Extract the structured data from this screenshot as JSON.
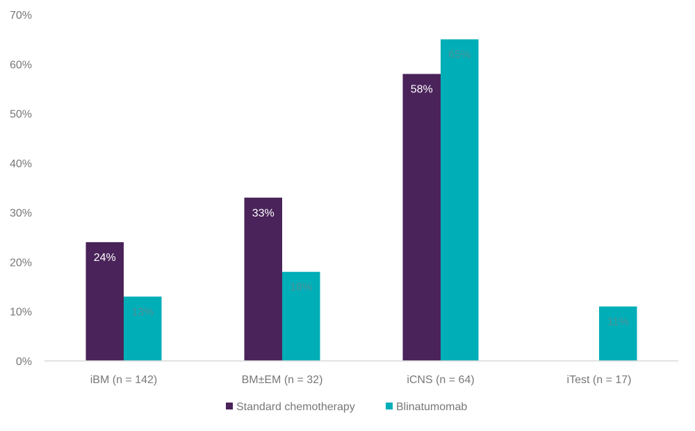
{
  "chart_data": {
    "type": "bar",
    "title": "",
    "xlabel": "",
    "ylabel": "",
    "ylim": [
      0,
      70
    ],
    "yticks": [
      0,
      10,
      20,
      30,
      40,
      50,
      60,
      70
    ],
    "ytick_labels": [
      "0%",
      "10%",
      "20%",
      "30%",
      "40%",
      "50%",
      "60%",
      "70%"
    ],
    "grid": false,
    "legend_position": "bottom-center",
    "categories": [
      "iBM (n = 142)",
      "BM±EM (n = 32)",
      "iCNS (n = 64)",
      "iTest (n = 17)"
    ],
    "series": [
      {
        "name": "Standard chemotherapy",
        "color": "#4a235a",
        "label_color": "#ffffff",
        "values": [
          24,
          33,
          58,
          null
        ],
        "labels": [
          "24%",
          "33%",
          "58%",
          null
        ]
      },
      {
        "name": "Blinatumomab",
        "color": "#00aeb8",
        "label_color": "#4f8f94",
        "values": [
          13,
          18,
          65,
          11
        ],
        "labels": [
          "13%",
          "18%",
          "65%",
          "11%"
        ]
      }
    ]
  }
}
